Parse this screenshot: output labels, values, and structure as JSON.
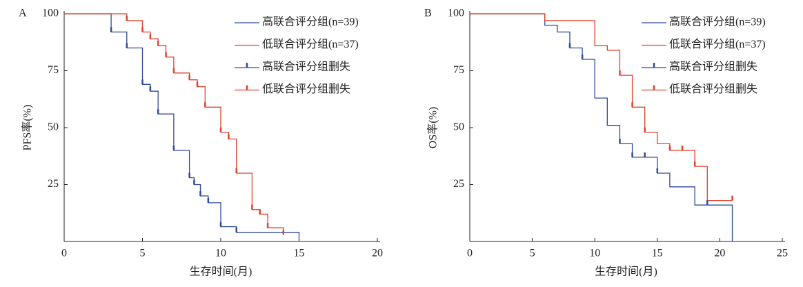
{
  "chart_data": [
    {
      "type": "line",
      "step": true,
      "panel_label": "A",
      "xlabel": "生存时间(月)",
      "ylabel": "PFS率(%)",
      "xlim": [
        0,
        20
      ],
      "xticks": [
        0,
        5,
        10,
        15,
        20
      ],
      "ylim": [
        0,
        100
      ],
      "yticks": [
        25,
        50,
        75,
        100
      ],
      "legend": "upper right",
      "series": [
        {
          "name": "高联合评分组(n=39)",
          "color": "#2e4a9e",
          "marker": "line",
          "x": [
            0,
            3,
            4,
            5,
            5.5,
            6,
            7,
            8,
            8.3,
            8.7,
            9.2,
            10,
            11,
            15
          ],
          "values": [
            100,
            92,
            85,
            69,
            66,
            56,
            40,
            28,
            25,
            20,
            17,
            6.5,
            4,
            0
          ]
        },
        {
          "name": "低联合评分组(n=37)",
          "color": "#e0412a",
          "marker": "line",
          "x": [
            0,
            4,
            5,
            5.5,
            6,
            6.5,
            7,
            8,
            8.5,
            9,
            10,
            10.5,
            11,
            12,
            12.5,
            13,
            14
          ],
          "values": [
            100,
            97,
            92,
            89,
            86,
            81,
            74,
            71,
            68,
            59,
            48,
            45,
            30,
            14,
            12,
            6,
            3
          ]
        },
        {
          "name": "高联合评分组删失",
          "color": "#2e4a9e",
          "marker": "censor",
          "x": [
            3,
            4,
            5,
            5.5,
            6,
            7,
            8,
            8.3,
            8.7,
            9.2,
            10,
            11
          ],
          "values": [
            92,
            85,
            69,
            66,
            56,
            40,
            28,
            25,
            20,
            17,
            6.5,
            4
          ]
        },
        {
          "name": "低联合评分组删失",
          "color": "#e0412a",
          "marker": "censor",
          "x": [
            4,
            5,
            5.5,
            6,
            6.5,
            7,
            8,
            8.5,
            9,
            10,
            10.5,
            11,
            12,
            12.5,
            13,
            14
          ],
          "values": [
            97,
            92,
            89,
            86,
            81,
            74,
            71,
            68,
            59,
            48,
            45,
            30,
            14,
            12,
            6,
            3
          ]
        }
      ]
    },
    {
      "type": "line",
      "step": true,
      "panel_label": "B",
      "xlabel": "生存时间(月)",
      "ylabel": "OS率(%)",
      "xlim": [
        0,
        25
      ],
      "xticks": [
        0,
        5,
        10,
        15,
        20,
        25
      ],
      "ylim": [
        0,
        100
      ],
      "yticks": [
        25,
        50,
        75,
        100
      ],
      "legend": "upper right",
      "series": [
        {
          "name": "高联合评分组(n=39)",
          "color": "#2e4a9e",
          "marker": "line",
          "x": [
            0,
            6,
            7,
            8,
            9,
            10,
            11,
            12,
            13,
            15,
            16,
            18,
            21
          ],
          "values": [
            100,
            95,
            92,
            85,
            80,
            63,
            51,
            43,
            37,
            30,
            24,
            16,
            0
          ]
        },
        {
          "name": "低联合评分组(n=37)",
          "color": "#e0412a",
          "marker": "line",
          "x": [
            0,
            6,
            10,
            11,
            12,
            13,
            14,
            15,
            16,
            18,
            19,
            21
          ],
          "values": [
            100,
            97,
            86,
            84,
            73,
            59,
            48,
            43,
            40,
            33,
            18,
            18
          ]
        },
        {
          "name": "高联合评分组删失",
          "color": "#2e4a9e",
          "marker": "censor",
          "x": [
            8,
            9,
            12,
            13,
            14,
            15,
            19
          ],
          "values": [
            85,
            80,
            43,
            37,
            37,
            30,
            16
          ]
        },
        {
          "name": "低联合评分组删失",
          "color": "#e0412a",
          "marker": "censor",
          "x": [
            12,
            13,
            14,
            16,
            17,
            18,
            21
          ],
          "values": [
            73,
            59,
            48,
            40,
            40,
            33,
            18
          ]
        }
      ]
    }
  ]
}
